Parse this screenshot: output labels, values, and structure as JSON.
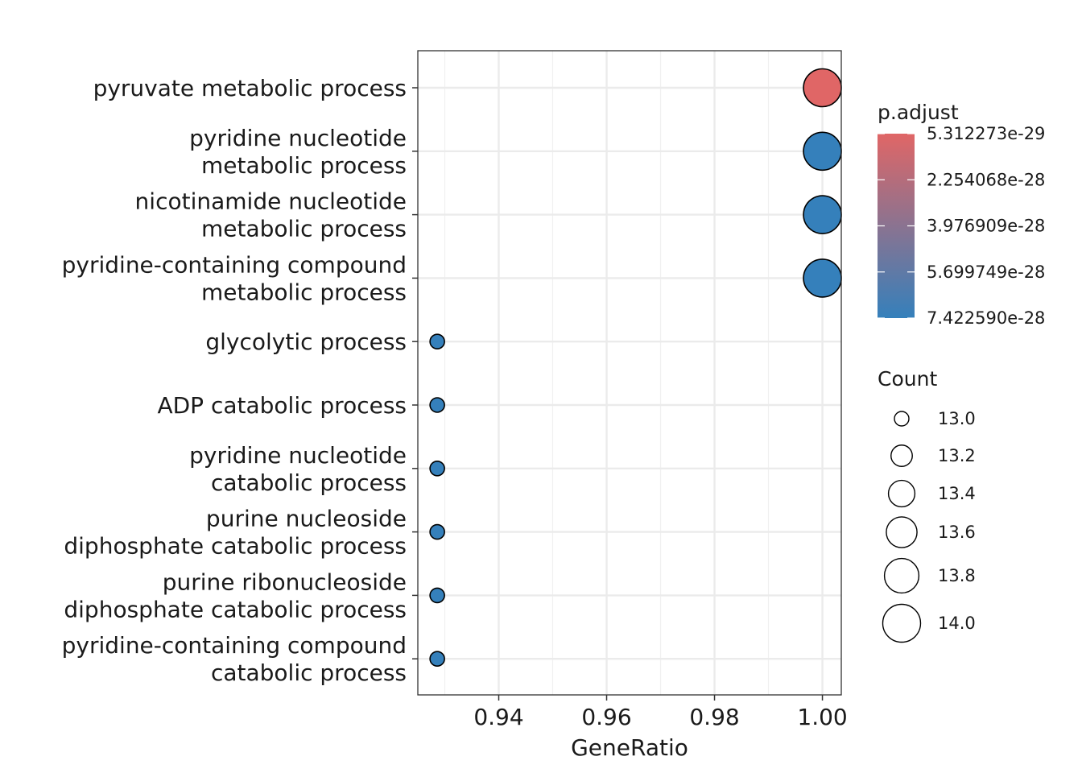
{
  "chart_data": {
    "type": "scatter",
    "subtype": "dot",
    "title": "",
    "xlabel": "GeneRatio",
    "ylabel": "",
    "xlim": [
      0.925,
      1.0035
    ],
    "x_ticks": [
      0.94,
      0.96,
      0.98,
      1.0
    ],
    "x_tick_labels": [
      "0.94",
      "0.96",
      "0.98",
      "1.00"
    ],
    "grid": true,
    "legend_position": "right",
    "categories": [
      [
        "pyruvate metabolic process"
      ],
      [
        "pyridine nucleotide",
        "metabolic process"
      ],
      [
        "nicotinamide nucleotide",
        "metabolic process"
      ],
      [
        "pyridine-containing compound",
        "metabolic process"
      ],
      [
        "glycolytic process"
      ],
      [
        "ADP catabolic process"
      ],
      [
        "pyridine nucleotide",
        "catabolic process"
      ],
      [
        "purine nucleoside",
        "diphosphate catabolic process"
      ],
      [
        "purine ribonucleoside",
        "diphosphate catabolic process"
      ],
      [
        "pyridine-containing compound",
        "catabolic process"
      ]
    ],
    "points": [
      {
        "x": 1.0,
        "count": 14,
        "p_adjust": 5.312273e-29
      },
      {
        "x": 1.0,
        "count": 14,
        "p_adjust": 7.42259e-28
      },
      {
        "x": 1.0,
        "count": 14,
        "p_adjust": 7.42259e-28
      },
      {
        "x": 1.0,
        "count": 14,
        "p_adjust": 7.42259e-28
      },
      {
        "x": 0.9286,
        "count": 13,
        "p_adjust": 7.42259e-28
      },
      {
        "x": 0.9286,
        "count": 13,
        "p_adjust": 7.42259e-28
      },
      {
        "x": 0.9286,
        "count": 13,
        "p_adjust": 7.42259e-28
      },
      {
        "x": 0.9286,
        "count": 13,
        "p_adjust": 7.42259e-28
      },
      {
        "x": 0.9286,
        "count": 13,
        "p_adjust": 7.42259e-28
      },
      {
        "x": 0.9286,
        "count": 13,
        "p_adjust": 7.42259e-28
      }
    ],
    "color_legend": {
      "title": "p.adjust",
      "labels": [
        "5.312273e-29",
        "2.254068e-28",
        "3.976909e-28",
        "5.699749e-28",
        "7.422590e-28"
      ],
      "low_color": "#e06666",
      "high_color": "#3580bb"
    },
    "size_legend": {
      "title": "Count",
      "labels": [
        "13.0",
        "13.2",
        "13.4",
        "13.6",
        "13.8",
        "14.0"
      ],
      "values": [
        13.0,
        13.2,
        13.4,
        13.6,
        13.8,
        14.0
      ]
    }
  }
}
